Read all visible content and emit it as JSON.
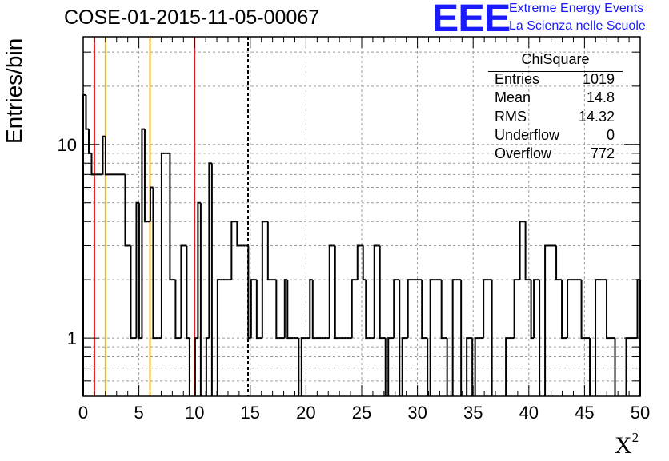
{
  "title": "COSE-01-2015-11-05-00067",
  "logo": {
    "mark": "EEE",
    "line1": "Extreme Energy Events",
    "line2": "La Scienza nelle Scuole",
    "color": "#1a1aff"
  },
  "stats": {
    "title": "ChiSquare",
    "rows": [
      {
        "label": "Entries",
        "value": "1019"
      },
      {
        "label": "Mean",
        "value": "14.8"
      },
      {
        "label": "RMS",
        "value": "14.32"
      },
      {
        "label": "Underflow",
        "value": "0"
      },
      {
        "label": "Overflow",
        "value": "772"
      }
    ]
  },
  "chart_data": {
    "type": "histogram",
    "xlabel": "X",
    "xlabel_sup": "2",
    "ylabel": "Entries/bin",
    "xlim": [
      0,
      50
    ],
    "ylim": [
      0.5,
      36
    ],
    "yscale": "log",
    "grid": true,
    "bin_width": 1,
    "x_ticks": [
      0,
      5,
      10,
      15,
      20,
      25,
      30,
      35,
      40,
      45,
      50
    ],
    "x_tick_labels": [
      "0",
      "5",
      "10",
      "15",
      "20",
      "25",
      "30",
      "35",
      "40",
      "45",
      "50"
    ],
    "y_ticks": [
      1,
      10
    ],
    "y_tick_labels": [
      "1",
      "10"
    ],
    "values": [
      18,
      12,
      9,
      7,
      7,
      7,
      7,
      11,
      7,
      7,
      7,
      7,
      7,
      7,
      7,
      3,
      3,
      1,
      1,
      5,
      1,
      12,
      4,
      4,
      6,
      1,
      1,
      1,
      9,
      9,
      9,
      2,
      2,
      1,
      1,
      3,
      3,
      1,
      0,
      0,
      1,
      5,
      0,
      0,
      1,
      8,
      0,
      0,
      2,
      2,
      2,
      2,
      2,
      4,
      4,
      3,
      3,
      3,
      3,
      1,
      2,
      2,
      1,
      1,
      4,
      4,
      2,
      2,
      2,
      1,
      1,
      1,
      2,
      1,
      1,
      1,
      1,
      0,
      1,
      1,
      1,
      2,
      1,
      1,
      1,
      1,
      1,
      1,
      3,
      3,
      1,
      1,
      1,
      1,
      1,
      1,
      2,
      2,
      3,
      3,
      2,
      1,
      1,
      1,
      3,
      3,
      1,
      1,
      0,
      1,
      1,
      2,
      2,
      0,
      1,
      1,
      2,
      2,
      2,
      2,
      2,
      1,
      1,
      0,
      2,
      2,
      2,
      2,
      1,
      1,
      0,
      0,
      2,
      2,
      2,
      0,
      0,
      1,
      1,
      0,
      1,
      1,
      1,
      2,
      2,
      2,
      0,
      0,
      0,
      0,
      0,
      1,
      1,
      1,
      2,
      2,
      4,
      4,
      2,
      2,
      1,
      2,
      2,
      0,
      0,
      3,
      3,
      3,
      3,
      2,
      2,
      1,
      1,
      2,
      2,
      2,
      2,
      2,
      1,
      1,
      1,
      0,
      0,
      2,
      2,
      2,
      2,
      1,
      1,
      1,
      0,
      0,
      0,
      0,
      1,
      1,
      1,
      1,
      2
    ],
    "vertical_lines": [
      {
        "x": 1,
        "color": "#e8171f",
        "style": "solid"
      },
      {
        "x": 2,
        "color": "#f3b71f",
        "style": "solid"
      },
      {
        "x": 6,
        "color": "#f3b71f",
        "style": "solid"
      },
      {
        "x": 10,
        "color": "#e8171f",
        "style": "solid"
      },
      {
        "x": 14.8,
        "color": "#000000",
        "style": "dashed"
      }
    ]
  }
}
